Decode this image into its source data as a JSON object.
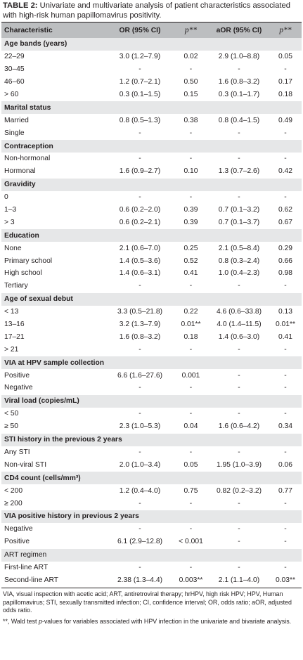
{
  "caption": {
    "label": "TABLE 2:",
    "text": " Univariate and multivariate analysis of patient characteristics associated with high-risk human papillomavirus positivity."
  },
  "headers": [
    "Characteristic",
    "OR (95% CI)",
    "p**",
    "aOR (95% CI)",
    "p**"
  ],
  "groups": [
    {
      "title": "Age bands (years)",
      "rows": [
        [
          "22–29",
          "3.0 (1.2–7.9)",
          "0.02",
          "2.9 (1.0–8.8)",
          "0.05"
        ],
        [
          "30–45",
          "-",
          "-",
          "-",
          "-"
        ],
        [
          "46–60",
          "1.2 (0.7–2.1)",
          "0.50",
          "1.6 (0.8–3.2)",
          "0.17"
        ],
        [
          "> 60",
          "0.3 (0.1–1.5)",
          "0.15",
          "0.3 (0.1–1.7)",
          "0.18"
        ]
      ]
    },
    {
      "title": "Marital status",
      "rows": [
        [
          "Married",
          "0.8 (0.5–1.3)",
          "0.38",
          "0.8 (0.4–1.5)",
          "0.49"
        ],
        [
          "Single",
          "-",
          "-",
          "-",
          "-"
        ]
      ]
    },
    {
      "title": "Contraception",
      "rows": [
        [
          "Non-hormonal",
          "-",
          "-",
          "-",
          "-"
        ],
        [
          "Hormonal",
          "1.6 (0.9–2.7)",
          "0.10",
          "1.3 (0.7–2.6)",
          "0.42"
        ]
      ]
    },
    {
      "title": "Gravidity",
      "rows": [
        [
          "0",
          "-",
          "-",
          "-",
          "-"
        ],
        [
          "1–3",
          "0.6 (0.2–2.0)",
          "0.39",
          "0.7 (0.1–3.2)",
          "0.62"
        ],
        [
          "> 3",
          "0.6 (0.2–2.1)",
          "0.39",
          "0.7 (0.1–3.7)",
          "0.67"
        ]
      ]
    },
    {
      "title": "Education",
      "rows": [
        [
          "None",
          "2.1 (0.6–7.0)",
          "0.25",
          "2.1 (0.5–8.4)",
          "0.29"
        ],
        [
          "Primary school",
          "1.4 (0.5–3.6)",
          "0.52",
          "0.8 (0.3–2.4)",
          "0.66"
        ],
        [
          "High school",
          "1.4 (0.6–3.1)",
          "0.41",
          "1.0 (0.4–2.3)",
          "0.98"
        ],
        [
          "Tertiary",
          "-",
          "-",
          "-",
          "-"
        ]
      ]
    },
    {
      "title": "Age of sexual debut",
      "rows": [
        [
          "< 13",
          "3.3 (0.5–21.8)",
          "0.22",
          "4.6 (0.6–33.8)",
          "0.13"
        ],
        [
          "13–16",
          "3.2 (1.3–7.9)",
          "0.01**",
          "4.0 (1.4–11.5)",
          "0.01**"
        ],
        [
          "17–21",
          "1.6 (0.8–3.2)",
          "0.18",
          "1.4 (0.6–3.0)",
          "0.41"
        ],
        [
          "> 21",
          "-",
          "-",
          "-",
          "-"
        ]
      ]
    },
    {
      "title": "VIA at HPV sample collection",
      "rows": [
        [
          "Positive",
          "6.6 (1.6–27.6)",
          "0.001",
          "-",
          "-"
        ],
        [
          "Negative",
          "-",
          "-",
          "-",
          "-"
        ]
      ]
    },
    {
      "title": "Viral load (copies/mL)",
      "rows": [
        [
          "< 50",
          "-",
          "-",
          "-",
          "-"
        ],
        [
          "≥ 50",
          "2.3 (1.0–5.3)",
          "0.04",
          "1.6 (0.6–4.2)",
          "0.34"
        ]
      ]
    },
    {
      "title": "STI history in the previous 2 years",
      "rows": [
        [
          "Any STI",
          "-",
          "-",
          "-",
          "-"
        ],
        [
          "Non-viral STI",
          "2.0 (1.0–3.4)",
          "0.05",
          "1.95 (1.0–3.9)",
          "0.06"
        ]
      ]
    },
    {
      "title": "CD4 count (cells/mm³)",
      "rows": [
        [
          "< 200",
          "1.2 (0.4–4.0)",
          "0.75",
          "0.82 (0.2–3.2)",
          "0.77"
        ],
        [
          "≥ 200",
          "-",
          "-",
          "-",
          "-"
        ]
      ]
    },
    {
      "title": "VIA positive history in previous 2 years",
      "rows": [
        [
          "Negative",
          "-",
          "-",
          "-",
          "-"
        ],
        [
          "Positive",
          "6.1 (2.9–12.8)",
          "< 0.001",
          "-",
          "-"
        ]
      ]
    },
    {
      "title": "ART regimen",
      "plain": true,
      "rows": [
        [
          "First-line ART",
          "-",
          "-",
          "-",
          "-"
        ],
        [
          "Second-line ART",
          "2.38 (1.3–4.4)",
          "0.003**",
          "2.1 (1.1–4.0)",
          "0.03**"
        ]
      ]
    }
  ],
  "notes": {
    "abbrev": "VIA, visual inspection with acetic acid; ART, antiretroviral therapy; hrHPV, high risk HPV; HPV, Human papillomavirus; STI, sexually transmitted infection; CI, confidence interval; OR, odds ratio; aOR, adjusted odds ratio.",
    "wald_prefix": "**, Wald test ",
    "wald_p": "p",
    "wald_suffix": "-values for variables associated with HPV infection in the univariate and bivariate analysis."
  }
}
